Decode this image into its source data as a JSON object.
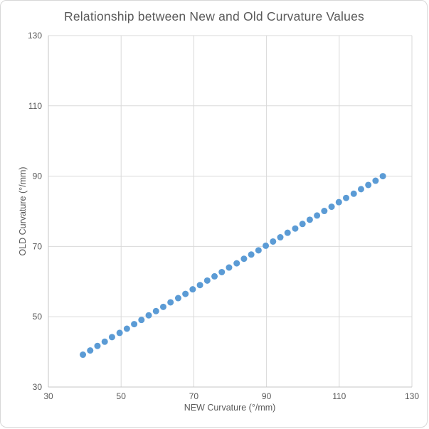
{
  "chart_data": {
    "type": "scatter",
    "title": "Relationship between New and Old Curvature Values",
    "xlabel": "NEW Curvature (°/mm)",
    "ylabel": "OLD Curvature (°/mm)",
    "xlim": [
      30,
      130
    ],
    "ylim": [
      30,
      130
    ],
    "xticks": [
      30,
      50,
      70,
      90,
      110,
      130
    ],
    "yticks": [
      30,
      50,
      70,
      90,
      110,
      130
    ],
    "grid": true,
    "legend": false,
    "marker_color": "#5B9BD5",
    "grid_color": "#D9D9D9",
    "axis_color": "#C6C6C6",
    "text_color": "#595959",
    "points": [
      [
        39.5,
        39.2
      ],
      [
        41.5,
        40.4
      ],
      [
        43.5,
        41.7
      ],
      [
        45.5,
        42.9
      ],
      [
        47.5,
        44.2
      ],
      [
        49.6,
        45.4
      ],
      [
        51.6,
        46.6
      ],
      [
        53.6,
        47.9
      ],
      [
        55.6,
        49.1
      ],
      [
        57.6,
        50.4
      ],
      [
        59.6,
        51.6
      ],
      [
        61.6,
        52.8
      ],
      [
        63.6,
        54.1
      ],
      [
        65.7,
        55.3
      ],
      [
        67.7,
        56.5
      ],
      [
        69.7,
        57.8
      ],
      [
        71.7,
        59.0
      ],
      [
        73.7,
        60.3
      ],
      [
        75.7,
        61.5
      ],
      [
        77.7,
        62.7
      ],
      [
        79.7,
        64.0
      ],
      [
        81.8,
        65.2
      ],
      [
        83.8,
        66.5
      ],
      [
        85.8,
        67.7
      ],
      [
        87.8,
        68.9
      ],
      [
        89.8,
        70.2
      ],
      [
        91.8,
        71.4
      ],
      [
        93.8,
        72.6
      ],
      [
        95.8,
        73.9
      ],
      [
        97.9,
        75.1
      ],
      [
        99.9,
        76.4
      ],
      [
        101.9,
        77.6
      ],
      [
        103.9,
        78.8
      ],
      [
        105.9,
        80.1
      ],
      [
        107.9,
        81.3
      ],
      [
        109.9,
        82.6
      ],
      [
        111.9,
        83.8
      ],
      [
        114.0,
        85.0
      ],
      [
        116.0,
        86.3
      ],
      [
        118.0,
        87.5
      ],
      [
        120.0,
        88.7
      ],
      [
        122.0,
        90.0
      ]
    ]
  }
}
